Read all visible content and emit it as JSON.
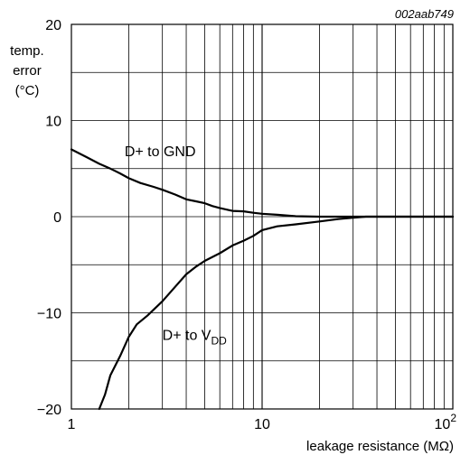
{
  "chart_data": {
    "type": "line",
    "figure_id": "002aab749",
    "ylabel": [
      "temp.",
      "error",
      "(°C)"
    ],
    "xlabel": "leakage resistance (MΩ)",
    "x_scale": "log",
    "xlim": [
      1,
      100
    ],
    "ylim": [
      -20,
      20
    ],
    "x_tick_labels": [
      {
        "x": 1,
        "label": "1"
      },
      {
        "x": 10,
        "label": "10"
      },
      {
        "x": 100,
        "label": "10",
        "sup": "2"
      }
    ],
    "y_tick_labels": [
      {
        "y": 20,
        "label": "20"
      },
      {
        "y": 10,
        "label": "10"
      },
      {
        "y": 0,
        "label": "0"
      },
      {
        "y": -10,
        "label": "−10"
      },
      {
        "y": -20,
        "label": "−20"
      }
    ],
    "grid": true,
    "series": [
      {
        "name": "D+ to GND",
        "annotation": {
          "text": "D+ to GND",
          "sub": "",
          "anchor_x": 1.9,
          "anchor_y": 6.3
        },
        "points": [
          [
            1.0,
            7.0
          ],
          [
            1.2,
            6.2
          ],
          [
            1.4,
            5.5
          ],
          [
            1.6,
            5.0
          ],
          [
            1.8,
            4.5
          ],
          [
            2.0,
            4.0
          ],
          [
            2.3,
            3.5
          ],
          [
            2.7,
            3.1
          ],
          [
            3.0,
            2.8
          ],
          [
            3.5,
            2.3
          ],
          [
            4.0,
            1.8
          ],
          [
            4.5,
            1.6
          ],
          [
            5.0,
            1.4
          ],
          [
            5.5,
            1.1
          ],
          [
            6.0,
            0.9
          ],
          [
            7.0,
            0.6
          ],
          [
            8.0,
            0.55
          ],
          [
            9.0,
            0.4
          ],
          [
            10.0,
            0.3
          ],
          [
            12.0,
            0.2
          ],
          [
            15.0,
            0.05
          ],
          [
            20.0,
            0.0
          ],
          [
            25.0,
            0.0
          ],
          [
            30.0,
            0.0
          ],
          [
            40.0,
            0.0
          ],
          [
            60.0,
            0.0
          ],
          [
            100.0,
            0.0
          ]
        ]
      },
      {
        "name": "D+ to VDD",
        "annotation": {
          "text": "D+ to V",
          "sub": "DD",
          "anchor_x": 3.0,
          "anchor_y": -12.8
        },
        "points": [
          [
            1.4,
            -20.0
          ],
          [
            1.5,
            -18.5
          ],
          [
            1.6,
            -16.5
          ],
          [
            1.8,
            -14.5
          ],
          [
            2.0,
            -12.5
          ],
          [
            2.2,
            -11.2
          ],
          [
            2.5,
            -10.3
          ],
          [
            3.0,
            -8.8
          ],
          [
            3.5,
            -7.3
          ],
          [
            4.0,
            -6.0
          ],
          [
            4.5,
            -5.2
          ],
          [
            5.0,
            -4.6
          ],
          [
            6.0,
            -3.8
          ],
          [
            7.0,
            -3.0
          ],
          [
            8.0,
            -2.5
          ],
          [
            9.0,
            -2.0
          ],
          [
            10.0,
            -1.4
          ],
          [
            12.0,
            -1.0
          ],
          [
            15.0,
            -0.8
          ],
          [
            20.0,
            -0.5
          ],
          [
            25.0,
            -0.25
          ],
          [
            30.0,
            -0.1
          ],
          [
            35.0,
            0.0
          ],
          [
            50.0,
            0.0
          ],
          [
            100.0,
            0.0
          ]
        ]
      }
    ]
  }
}
